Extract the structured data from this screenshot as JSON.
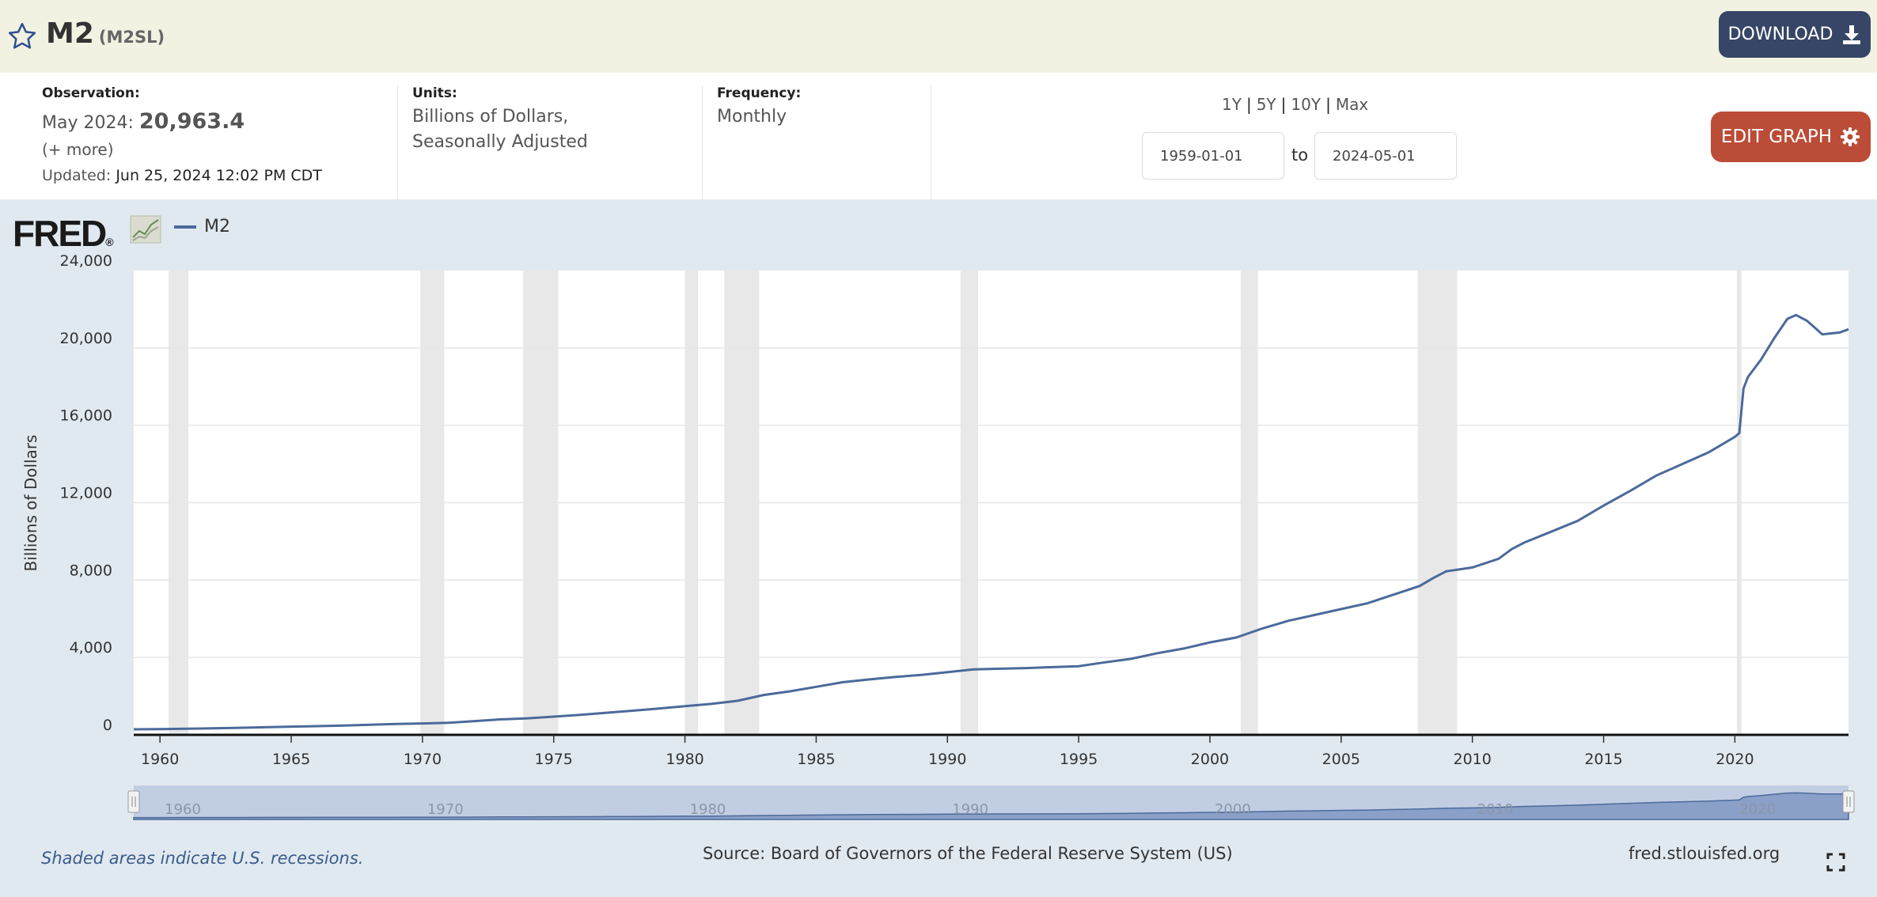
{
  "header": {
    "title": "M2",
    "series_id": "(M2SL)",
    "download_label": "DOWNLOAD",
    "icons": {
      "favorite": "star-outline-icon",
      "download": "download-icon"
    }
  },
  "meta": {
    "observation_label": "Observation:",
    "observation_period": "May 2024:",
    "observation_value": "20,963.4",
    "more_label": "(+ more)",
    "updated_label": "Updated:",
    "updated_value": "Jun 25, 2024 12:02 PM CDT",
    "units_label": "Units:",
    "units_line1": "Billions of Dollars,",
    "units_line2": "Seasonally Adjusted",
    "frequency_label": "Frequency:",
    "frequency_value": "Monthly"
  },
  "controls": {
    "range_1y": "1Y",
    "range_5y": "5Y",
    "range_10y": "10Y",
    "range_max": "Max",
    "separator": "|",
    "start_date": "1959-01-01",
    "to_label": "to",
    "end_date": "2024-05-01",
    "edit_label": "EDIT GRAPH",
    "edit_icon": "gear-icon"
  },
  "chart_data": {
    "type": "line",
    "ylabel": "Billions of Dollars",
    "legend": "M2",
    "line_color": "#4b6a9b",
    "recession_color": "#e8e8e8",
    "xlim": [
      1959.0,
      2024.33
    ],
    "ylim": [
      0,
      24000
    ],
    "yticks": [
      0,
      4000,
      8000,
      12000,
      16000,
      20000,
      24000
    ],
    "ytick_labels": [
      "0",
      "4,000",
      "8,000",
      "12,000",
      "16,000",
      "20,000",
      "24,000"
    ],
    "xticks": [
      1960,
      1965,
      1970,
      1975,
      1980,
      1985,
      1990,
      1995,
      2000,
      2005,
      2010,
      2015,
      2020
    ],
    "navigator_ticks": [
      1960,
      1970,
      1980,
      1990,
      2000,
      2010,
      2020
    ],
    "grid": true,
    "recessions": [
      [
        1960.33,
        1961.08
      ],
      [
        1969.92,
        1970.83
      ],
      [
        1973.83,
        1975.17
      ],
      [
        1980.0,
        1980.5
      ],
      [
        1981.5,
        1982.83
      ],
      [
        1990.5,
        1991.17
      ],
      [
        2001.17,
        2001.83
      ],
      [
        2007.92,
        2009.42
      ],
      [
        2020.08,
        2020.25
      ]
    ],
    "series": [
      {
        "name": "M2",
        "x": [
          1959.0,
          1960.0,
          1961.0,
          1962.0,
          1963.0,
          1964.0,
          1965.0,
          1966.0,
          1967.0,
          1968.0,
          1969.0,
          1970.0,
          1971.0,
          1972.0,
          1973.0,
          1974.0,
          1975.0,
          1976.0,
          1977.0,
          1978.0,
          1979.0,
          1980.0,
          1981.0,
          1982.0,
          1983.0,
          1984.0,
          1985.0,
          1986.0,
          1987.0,
          1988.0,
          1989.0,
          1990.0,
          1991.0,
          1992.0,
          1993.0,
          1994.0,
          1995.0,
          1996.0,
          1997.0,
          1998.0,
          1999.0,
          2000.0,
          2001.0,
          2002.0,
          2003.0,
          2004.0,
          2005.0,
          2006.0,
          2007.0,
          2008.0,
          2008.5,
          2009.0,
          2010.0,
          2011.0,
          2011.5,
          2012.0,
          2013.0,
          2014.0,
          2015.0,
          2016.0,
          2017.0,
          2018.0,
          2019.0,
          2020.0,
          2020.17,
          2020.33,
          2020.5,
          2021.0,
          2021.5,
          2022.0,
          2022.33,
          2022.75,
          2023.0,
          2023.33,
          2023.67,
          2024.0,
          2024.33
        ],
        "values": [
          287,
          298,
          313,
          338,
          365,
          394,
          424,
          451,
          480,
          521,
          560,
          588,
          626,
          713,
          800,
          856,
          940,
          1032,
          1142,
          1248,
          1356,
          1480,
          1600,
          1757,
          2060,
          2250,
          2480,
          2720,
          2860,
          2990,
          3100,
          3240,
          3380,
          3420,
          3450,
          3500,
          3550,
          3750,
          3930,
          4220,
          4460,
          4780,
          5030,
          5500,
          5900,
          6200,
          6500,
          6800,
          7250,
          7700,
          8100,
          8450,
          8650,
          9100,
          9600,
          9950,
          10500,
          11050,
          11850,
          12600,
          13400,
          14000,
          14600,
          15400,
          15600,
          17900,
          18500,
          19400,
          20500,
          21500,
          21700,
          21400,
          21100,
          20700,
          20750,
          20800,
          20963
        ]
      }
    ]
  },
  "footer": {
    "recession_note": "Shaded areas indicate U.S. recessions.",
    "source": "Source: Board of Governors of the Federal Reserve System (US)",
    "site": "fred.stlouisfed.org",
    "fullscreen_icon": "fullscreen-icon"
  }
}
